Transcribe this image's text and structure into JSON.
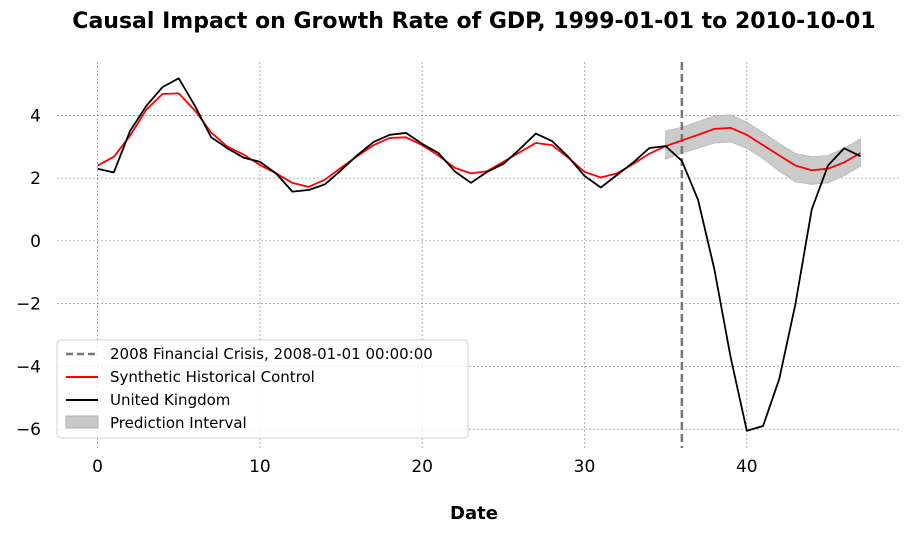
{
  "chart_data": {
    "type": "line",
    "title": "Causal Impact on Growth Rate of GDP, 1999-01-01 to 2010-10-01",
    "xlabel": "Date",
    "ylabel": "",
    "xlim": [
      -2.5,
      49.5
    ],
    "ylim": [
      -6.6,
      5.7
    ],
    "xticks": [
      0,
      10,
      20,
      30,
      40
    ],
    "yticks": [
      -6,
      -4,
      -2,
      0,
      2,
      4
    ],
    "grid": true,
    "legend_position": "lower-left",
    "x": [
      0,
      1,
      2,
      3,
      4,
      5,
      6,
      7,
      8,
      9,
      10,
      11,
      12,
      13,
      14,
      15,
      16,
      17,
      18,
      19,
      20,
      21,
      22,
      23,
      24,
      25,
      26,
      27,
      28,
      29,
      30,
      31,
      32,
      33,
      34,
      35,
      36,
      37,
      38,
      39,
      40,
      41,
      42,
      43,
      44,
      45,
      46,
      47
    ],
    "series": [
      {
        "name": "United Kingdom",
        "color": "#000000",
        "values": [
          2.3,
          2.18,
          3.5,
          4.3,
          4.9,
          5.18,
          4.3,
          3.3,
          2.95,
          2.65,
          2.52,
          2.15,
          1.57,
          1.62,
          1.8,
          2.25,
          2.73,
          3.15,
          3.38,
          3.44,
          3.09,
          2.8,
          2.22,
          1.85,
          2.2,
          2.45,
          2.92,
          3.42,
          3.18,
          2.68,
          2.07,
          1.7,
          2.1,
          2.5,
          2.96,
          3.02,
          2.55,
          1.3,
          -0.9,
          -3.7,
          -6.05,
          -5.9,
          -4.4,
          -2.0,
          1.0,
          2.4,
          2.95,
          2.7
        ]
      },
      {
        "name": "Synthetic Historical Control",
        "color": "#ff0000",
        "values": [
          2.4,
          2.68,
          3.35,
          4.18,
          4.68,
          4.7,
          4.15,
          3.45,
          3.0,
          2.75,
          2.42,
          2.15,
          1.85,
          1.72,
          1.95,
          2.33,
          2.7,
          3.05,
          3.28,
          3.3,
          3.05,
          2.72,
          2.33,
          2.15,
          2.22,
          2.52,
          2.82,
          3.12,
          3.05,
          2.65,
          2.2,
          2.02,
          2.15,
          2.45,
          2.78,
          3.02,
          3.2,
          3.38,
          3.57,
          3.6,
          3.38,
          3.05,
          2.72,
          2.4,
          2.25,
          2.3,
          2.5,
          2.8
        ]
      }
    ],
    "prediction_interval": {
      "name": "Prediction Interval",
      "color": "#c8c8c8",
      "x": [
        35,
        36,
        37,
        38,
        39,
        40,
        41,
        42,
        43,
        44,
        45,
        46,
        47
      ],
      "lower": [
        2.6,
        2.8,
        2.95,
        3.12,
        3.15,
        2.95,
        2.62,
        2.22,
        1.88,
        1.8,
        1.85,
        2.08,
        2.38
      ],
      "upper": [
        3.5,
        3.62,
        3.8,
        3.98,
        4.02,
        3.78,
        3.45,
        3.1,
        2.78,
        2.68,
        2.72,
        2.95,
        3.25
      ]
    },
    "event_line": {
      "name": "2008 Financial Crisis, 2008-01-01 00:00:00",
      "x": 36,
      "color": "#777777"
    }
  }
}
